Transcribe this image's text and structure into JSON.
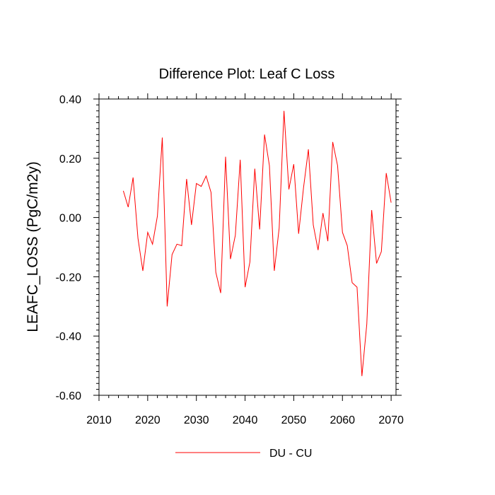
{
  "chart_data": {
    "type": "line",
    "title": "Difference Plot: Leaf C Loss",
    "xlabel": "",
    "ylabel": "LEAFC_LOSS  (PgC/m2y)",
    "xlim": [
      2010,
      2071
    ],
    "ylim": [
      -0.6,
      0.4
    ],
    "x_ticks": [
      2010,
      2020,
      2030,
      2040,
      2050,
      2060,
      2070
    ],
    "x_tick_labels": [
      "2010",
      "2020",
      "2030",
      "2040",
      "2050",
      "2060",
      "2070"
    ],
    "y_ticks": [
      -0.6,
      -0.4,
      -0.2,
      0.0,
      0.2,
      0.4
    ],
    "y_tick_labels": [
      "-0.60",
      "-0.40",
      "-0.20",
      "0.00",
      "0.20",
      "0.40"
    ],
    "grid": false,
    "legend_position": "bottom-center",
    "series": [
      {
        "name": "DU - CU",
        "color": "#ff0000",
        "x": [
          2015,
          2016,
          2017,
          2018,
          2019,
          2020,
          2021,
          2022,
          2023,
          2024,
          2025,
          2026,
          2027,
          2028,
          2029,
          2030,
          2031,
          2032,
          2033,
          2034,
          2035,
          2036,
          2037,
          2038,
          2039,
          2040,
          2041,
          2042,
          2043,
          2044,
          2045,
          2046,
          2047,
          2048,
          2049,
          2050,
          2051,
          2052,
          2053,
          2054,
          2055,
          2056,
          2057,
          2058,
          2059,
          2060,
          2061,
          2062,
          2063,
          2064,
          2065,
          2066,
          2067,
          2068,
          2069,
          2070
        ],
        "values": [
          0.09,
          0.035,
          0.135,
          -0.07,
          -0.18,
          -0.05,
          -0.09,
          0.005,
          0.27,
          -0.3,
          -0.125,
          -0.09,
          -0.095,
          0.13,
          -0.025,
          0.115,
          0.105,
          0.14,
          0.085,
          -0.185,
          -0.255,
          0.205,
          -0.14,
          -0.06,
          0.195,
          -0.235,
          -0.15,
          0.165,
          -0.04,
          0.28,
          0.175,
          -0.18,
          -0.035,
          0.36,
          0.095,
          0.18,
          -0.055,
          0.1,
          0.23,
          -0.025,
          -0.11,
          0.015,
          -0.08,
          0.255,
          0.175,
          -0.05,
          -0.095,
          -0.22,
          -0.235,
          -0.535,
          -0.36,
          0.025,
          -0.155,
          -0.115,
          0.15,
          0.05
        ]
      }
    ]
  }
}
